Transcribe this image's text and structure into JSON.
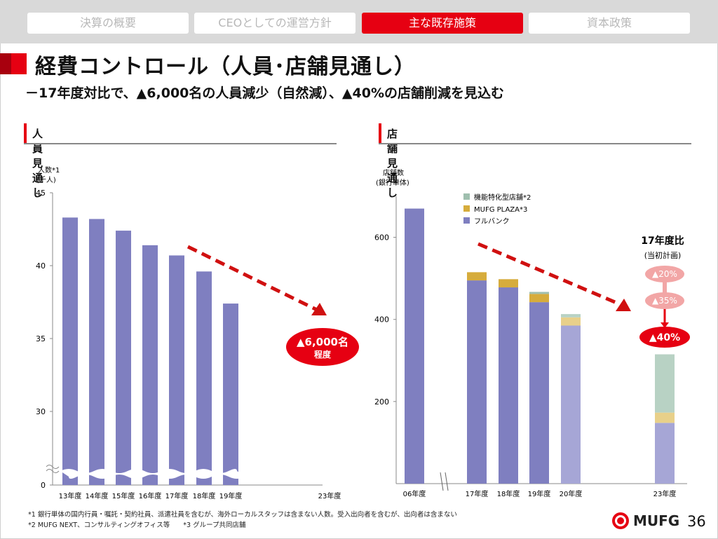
{
  "tabs": [
    {
      "label": "決算の概要",
      "active": false
    },
    {
      "label": "CEOとしての運営方針",
      "active": false
    },
    {
      "label": "主な既存施策",
      "active": true
    },
    {
      "label": "資本政策",
      "active": false
    }
  ],
  "title": "経費コントロール（人員･店舗見通し）",
  "subtitle": "－17年度対比で、▲6,000名の人員減少（自然減）、▲40%の店舗削減を見込む",
  "section_left": "人員見通し",
  "section_right": "店舗見通し",
  "left_callout": {
    "line1": "▲6,000名",
    "line2": "程度"
  },
  "right_callout": {
    "title": "17年度比",
    "sub": "(当初計画)",
    "steps": [
      "▲20%",
      "▲35%",
      "▲40%"
    ]
  },
  "footnotes": [
    "*1 銀行単体の国内行員・嘱託・契約社員、派遣社員を含むが、海外ローカルスタッフは含まない人数。受入出向者を含むが、出向者は含まない",
    "*2 MUFG NEXT、コンサルティングオフィス等　　*3 グループ共同店舗"
  ],
  "logo_text": "MUFG",
  "page_number": "36",
  "colors": {
    "accent": "#e60012",
    "bar": "#7f7fc0",
    "bar_light": "#a6a6d6",
    "plaza": "#d6ac3c",
    "plaza_light": "#e8d08a",
    "special": "#9fbfae",
    "special_light": "#b8d2c4"
  },
  "chart_data": [
    {
      "type": "bar",
      "ylabel": "人数*1\n(千人)",
      "categories": [
        "13年度",
        "14年度",
        "15年度",
        "16年度",
        "17年度",
        "18年度",
        "19年度",
        "23年度"
      ],
      "values": [
        43.3,
        43.2,
        42.4,
        41.4,
        40.7,
        39.6,
        37.4,
        null
      ],
      "yticks": [
        0,
        30,
        35,
        40,
        45
      ],
      "axis_break": true,
      "ylim": [
        25,
        45
      ]
    },
    {
      "type": "bar",
      "stacked": true,
      "ylabel": "店舗数\n(銀行単体)",
      "categories": [
        "06年度",
        "17年度",
        "18年度",
        "19年度",
        "20年度",
        "23年度"
      ],
      "yticks": [
        200,
        400,
        600
      ],
      "ylim": [
        0,
        700
      ],
      "legend": [
        "機能特化型店舗*2",
        "MUFG PLAZA*3",
        "フルバンク"
      ],
      "legend_position": "top-left",
      "series": [
        {
          "name": "フルバンク",
          "values": [
            670,
            495,
            478,
            442,
            385,
            148
          ]
        },
        {
          "name": "MUFG PLAZA*3",
          "values": [
            0,
            20,
            20,
            20,
            20,
            25
          ]
        },
        {
          "name": "機能特化型店舗*2",
          "values": [
            0,
            0,
            0,
            5,
            8,
            142
          ]
        }
      ]
    }
  ]
}
